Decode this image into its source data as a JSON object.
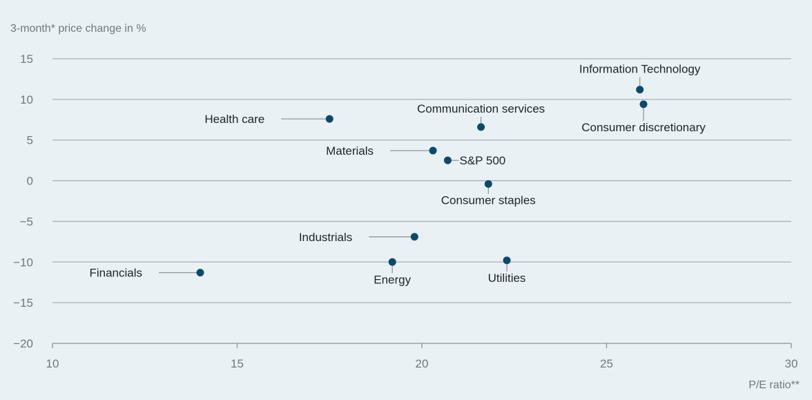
{
  "chart_data": {
    "type": "scatter",
    "ylabel": "3-month* price change in %",
    "xlabel": "P/E ratio**",
    "xlim": [
      10,
      30
    ],
    "ylim": [
      -20,
      15
    ],
    "xticks": [
      10,
      15,
      20,
      25,
      30
    ],
    "yticks": [
      15,
      10,
      5,
      0,
      -5,
      -10,
      -15,
      -20
    ],
    "ytick_labels": [
      "15",
      "10",
      "5",
      "0",
      "−5",
      "−10",
      "−15",
      "−20"
    ],
    "grid": "horizontal",
    "point_color": "#0b4a6f",
    "points": [
      {
        "label": "Information Technology",
        "x": 25.9,
        "y": 11.2
      },
      {
        "label": "Consumer discretionary",
        "x": 26.0,
        "y": 9.4
      },
      {
        "label": "Health care",
        "x": 17.5,
        "y": 7.6
      },
      {
        "label": "Communication services",
        "x": 21.6,
        "y": 6.6
      },
      {
        "label": "Materials",
        "x": 20.3,
        "y": 3.7
      },
      {
        "label": "S&P 500",
        "x": 20.7,
        "y": 2.5
      },
      {
        "label": "Consumer staples",
        "x": 21.8,
        "y": -0.4
      },
      {
        "label": "Industrials",
        "x": 19.8,
        "y": -6.9
      },
      {
        "label": "Financials",
        "x": 14.0,
        "y": -11.3
      },
      {
        "label": "Energy",
        "x": 19.2,
        "y": -10.0
      },
      {
        "label": "Utilities",
        "x": 22.3,
        "y": -9.8
      }
    ]
  }
}
